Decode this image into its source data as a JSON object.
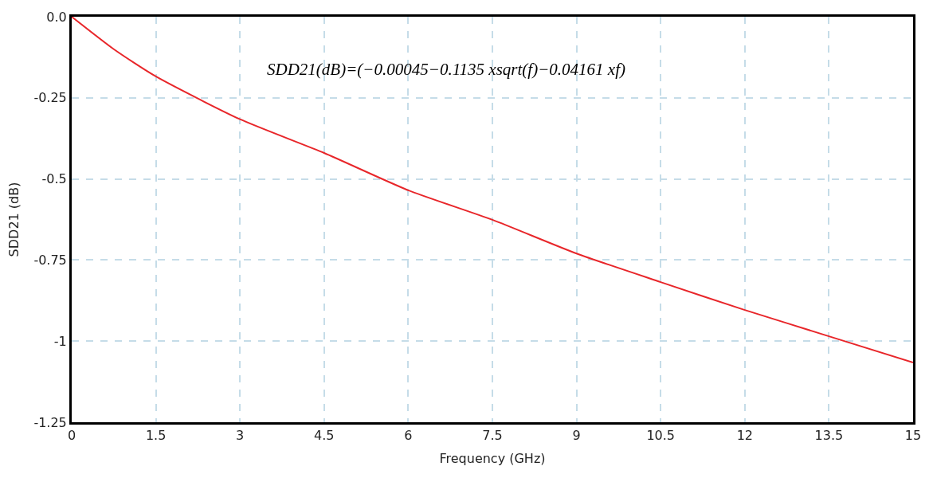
{
  "chart_data": {
    "type": "line",
    "xlabel": "Frequency (GHz)",
    "ylabel": "SDD21 (dB)",
    "x": [
      0,
      0.75,
      1.5,
      3,
      4.5,
      6,
      7.5,
      9,
      10.5,
      12,
      13.5,
      15
    ],
    "series": [
      {
        "color": "#e8262a",
        "values": [
          0,
          -0.1,
          -0.184,
          -0.316,
          -0.42,
          -0.535,
          -0.626,
          -0.73,
          -0.818,
          -0.904,
          -0.985,
          -1.066
        ]
      }
    ],
    "xlim": [
      0,
      15
    ],
    "ylim": [
      -1.25,
      0
    ],
    "xticks": [
      0,
      1.5,
      3,
      4.5,
      6,
      7.5,
      9,
      10.5,
      12,
      13.5,
      15
    ],
    "yticks": [
      {
        "value": 0,
        "label": "0.0"
      },
      -0.25,
      -0.5,
      -0.75,
      -1,
      -1.25
    ],
    "grid": true,
    "marker": "none",
    "line_style": "solid",
    "annotations": [
      "SDD21(dB)=(−0.00045−0.1135 xsqrt(f)−0.04161 xf)"
    ]
  }
}
